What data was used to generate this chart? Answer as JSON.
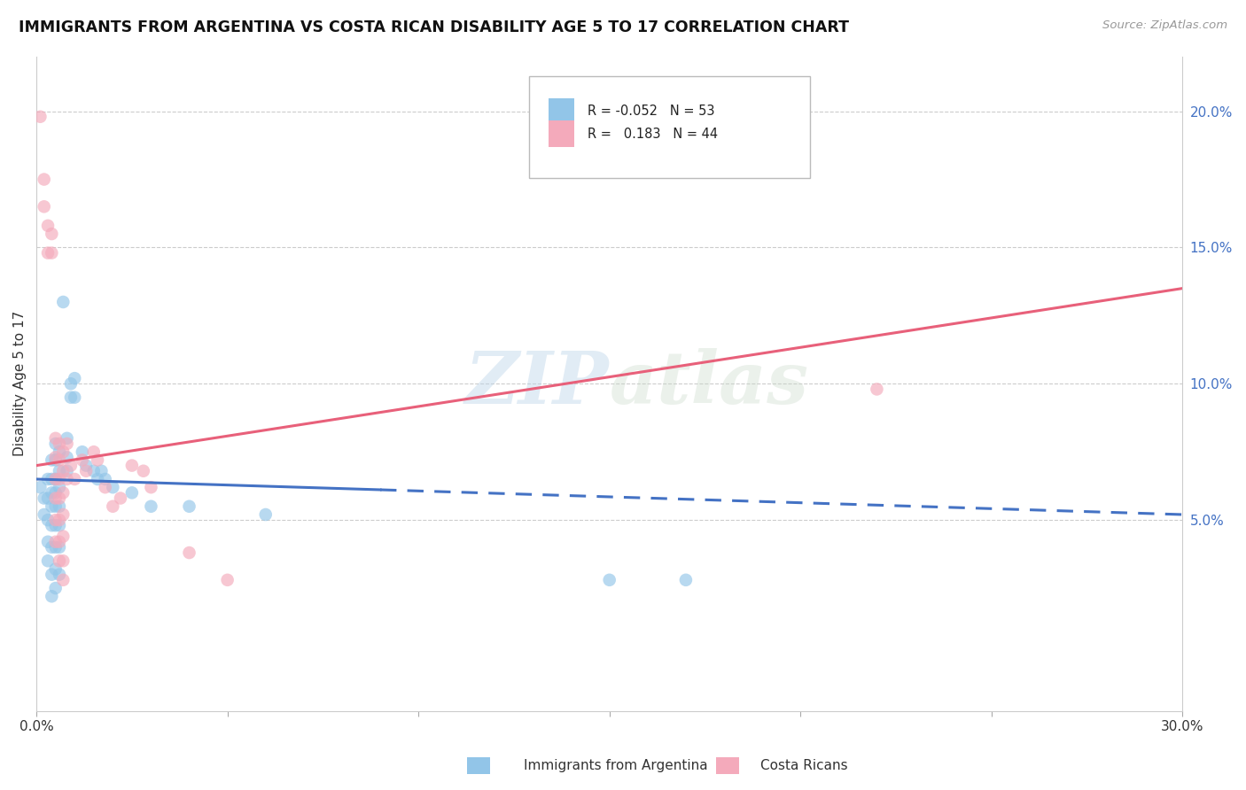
{
  "title": "IMMIGRANTS FROM ARGENTINA VS COSTA RICAN DISABILITY AGE 5 TO 17 CORRELATION CHART",
  "source": "Source: ZipAtlas.com",
  "ylabel": "Disability Age 5 to 17",
  "xlim": [
    0.0,
    0.3
  ],
  "ylim": [
    -0.02,
    0.22
  ],
  "xticks": [
    0.0,
    0.05,
    0.1,
    0.15,
    0.2,
    0.25,
    0.3
  ],
  "xtick_labels": [
    "0.0%",
    "",
    "",
    "",
    "",
    "",
    "30.0%"
  ],
  "yticks_right": [
    0.05,
    0.1,
    0.15,
    0.2
  ],
  "ytick_labels_right": [
    "5.0%",
    "10.0%",
    "15.0%",
    "20.0%"
  ],
  "watermark": "ZIPatlas",
  "argentina_color": "#92C5E8",
  "costarica_color": "#F4AABB",
  "argentina_line_color": "#4472C4",
  "costarica_line_color": "#E8607A",
  "grid_color": "#CCCCCC",
  "arg_line_x0": 0.0,
  "arg_line_y0": 0.065,
  "arg_line_x1": 0.3,
  "arg_line_y1": 0.052,
  "arg_line_solid_end": 0.09,
  "cr_line_x0": 0.0,
  "cr_line_y0": 0.07,
  "cr_line_x1": 0.3,
  "cr_line_y1": 0.135,
  "argentina_points": [
    [
      0.001,
      0.062
    ],
    [
      0.002,
      0.058
    ],
    [
      0.002,
      0.052
    ],
    [
      0.003,
      0.065
    ],
    [
      0.003,
      0.058
    ],
    [
      0.003,
      0.05
    ],
    [
      0.003,
      0.042
    ],
    [
      0.003,
      0.035
    ],
    [
      0.004,
      0.072
    ],
    [
      0.004,
      0.065
    ],
    [
      0.004,
      0.06
    ],
    [
      0.004,
      0.055
    ],
    [
      0.004,
      0.048
    ],
    [
      0.004,
      0.04
    ],
    [
      0.004,
      0.03
    ],
    [
      0.004,
      0.022
    ],
    [
      0.005,
      0.078
    ],
    [
      0.005,
      0.072
    ],
    [
      0.005,
      0.065
    ],
    [
      0.005,
      0.06
    ],
    [
      0.005,
      0.055
    ],
    [
      0.005,
      0.048
    ],
    [
      0.005,
      0.04
    ],
    [
      0.005,
      0.032
    ],
    [
      0.005,
      0.025
    ],
    [
      0.006,
      0.075
    ],
    [
      0.006,
      0.068
    ],
    [
      0.006,
      0.062
    ],
    [
      0.006,
      0.055
    ],
    [
      0.006,
      0.048
    ],
    [
      0.006,
      0.04
    ],
    [
      0.006,
      0.03
    ],
    [
      0.007,
      0.13
    ],
    [
      0.008,
      0.08
    ],
    [
      0.008,
      0.073
    ],
    [
      0.008,
      0.068
    ],
    [
      0.009,
      0.1
    ],
    [
      0.009,
      0.095
    ],
    [
      0.01,
      0.102
    ],
    [
      0.01,
      0.095
    ],
    [
      0.012,
      0.075
    ],
    [
      0.013,
      0.07
    ],
    [
      0.015,
      0.068
    ],
    [
      0.016,
      0.065
    ],
    [
      0.017,
      0.068
    ],
    [
      0.018,
      0.065
    ],
    [
      0.02,
      0.062
    ],
    [
      0.025,
      0.06
    ],
    [
      0.03,
      0.055
    ],
    [
      0.04,
      0.055
    ],
    [
      0.06,
      0.052
    ],
    [
      0.15,
      0.028
    ],
    [
      0.17,
      0.028
    ]
  ],
  "costarica_points": [
    [
      0.001,
      0.198
    ],
    [
      0.002,
      0.175
    ],
    [
      0.002,
      0.165
    ],
    [
      0.003,
      0.158
    ],
    [
      0.003,
      0.148
    ],
    [
      0.004,
      0.155
    ],
    [
      0.004,
      0.148
    ],
    [
      0.005,
      0.08
    ],
    [
      0.005,
      0.073
    ],
    [
      0.005,
      0.065
    ],
    [
      0.005,
      0.058
    ],
    [
      0.005,
      0.05
    ],
    [
      0.005,
      0.042
    ],
    [
      0.006,
      0.078
    ],
    [
      0.006,
      0.072
    ],
    [
      0.006,
      0.065
    ],
    [
      0.006,
      0.058
    ],
    [
      0.006,
      0.05
    ],
    [
      0.006,
      0.042
    ],
    [
      0.006,
      0.035
    ],
    [
      0.007,
      0.075
    ],
    [
      0.007,
      0.068
    ],
    [
      0.007,
      0.06
    ],
    [
      0.007,
      0.052
    ],
    [
      0.007,
      0.044
    ],
    [
      0.007,
      0.035
    ],
    [
      0.007,
      0.028
    ],
    [
      0.008,
      0.078
    ],
    [
      0.008,
      0.065
    ],
    [
      0.009,
      0.07
    ],
    [
      0.01,
      0.065
    ],
    [
      0.012,
      0.072
    ],
    [
      0.013,
      0.068
    ],
    [
      0.015,
      0.075
    ],
    [
      0.016,
      0.072
    ],
    [
      0.018,
      0.062
    ],
    [
      0.02,
      0.055
    ],
    [
      0.022,
      0.058
    ],
    [
      0.025,
      0.07
    ],
    [
      0.028,
      0.068
    ],
    [
      0.03,
      0.062
    ],
    [
      0.04,
      0.038
    ],
    [
      0.05,
      0.028
    ],
    [
      0.22,
      0.098
    ]
  ]
}
